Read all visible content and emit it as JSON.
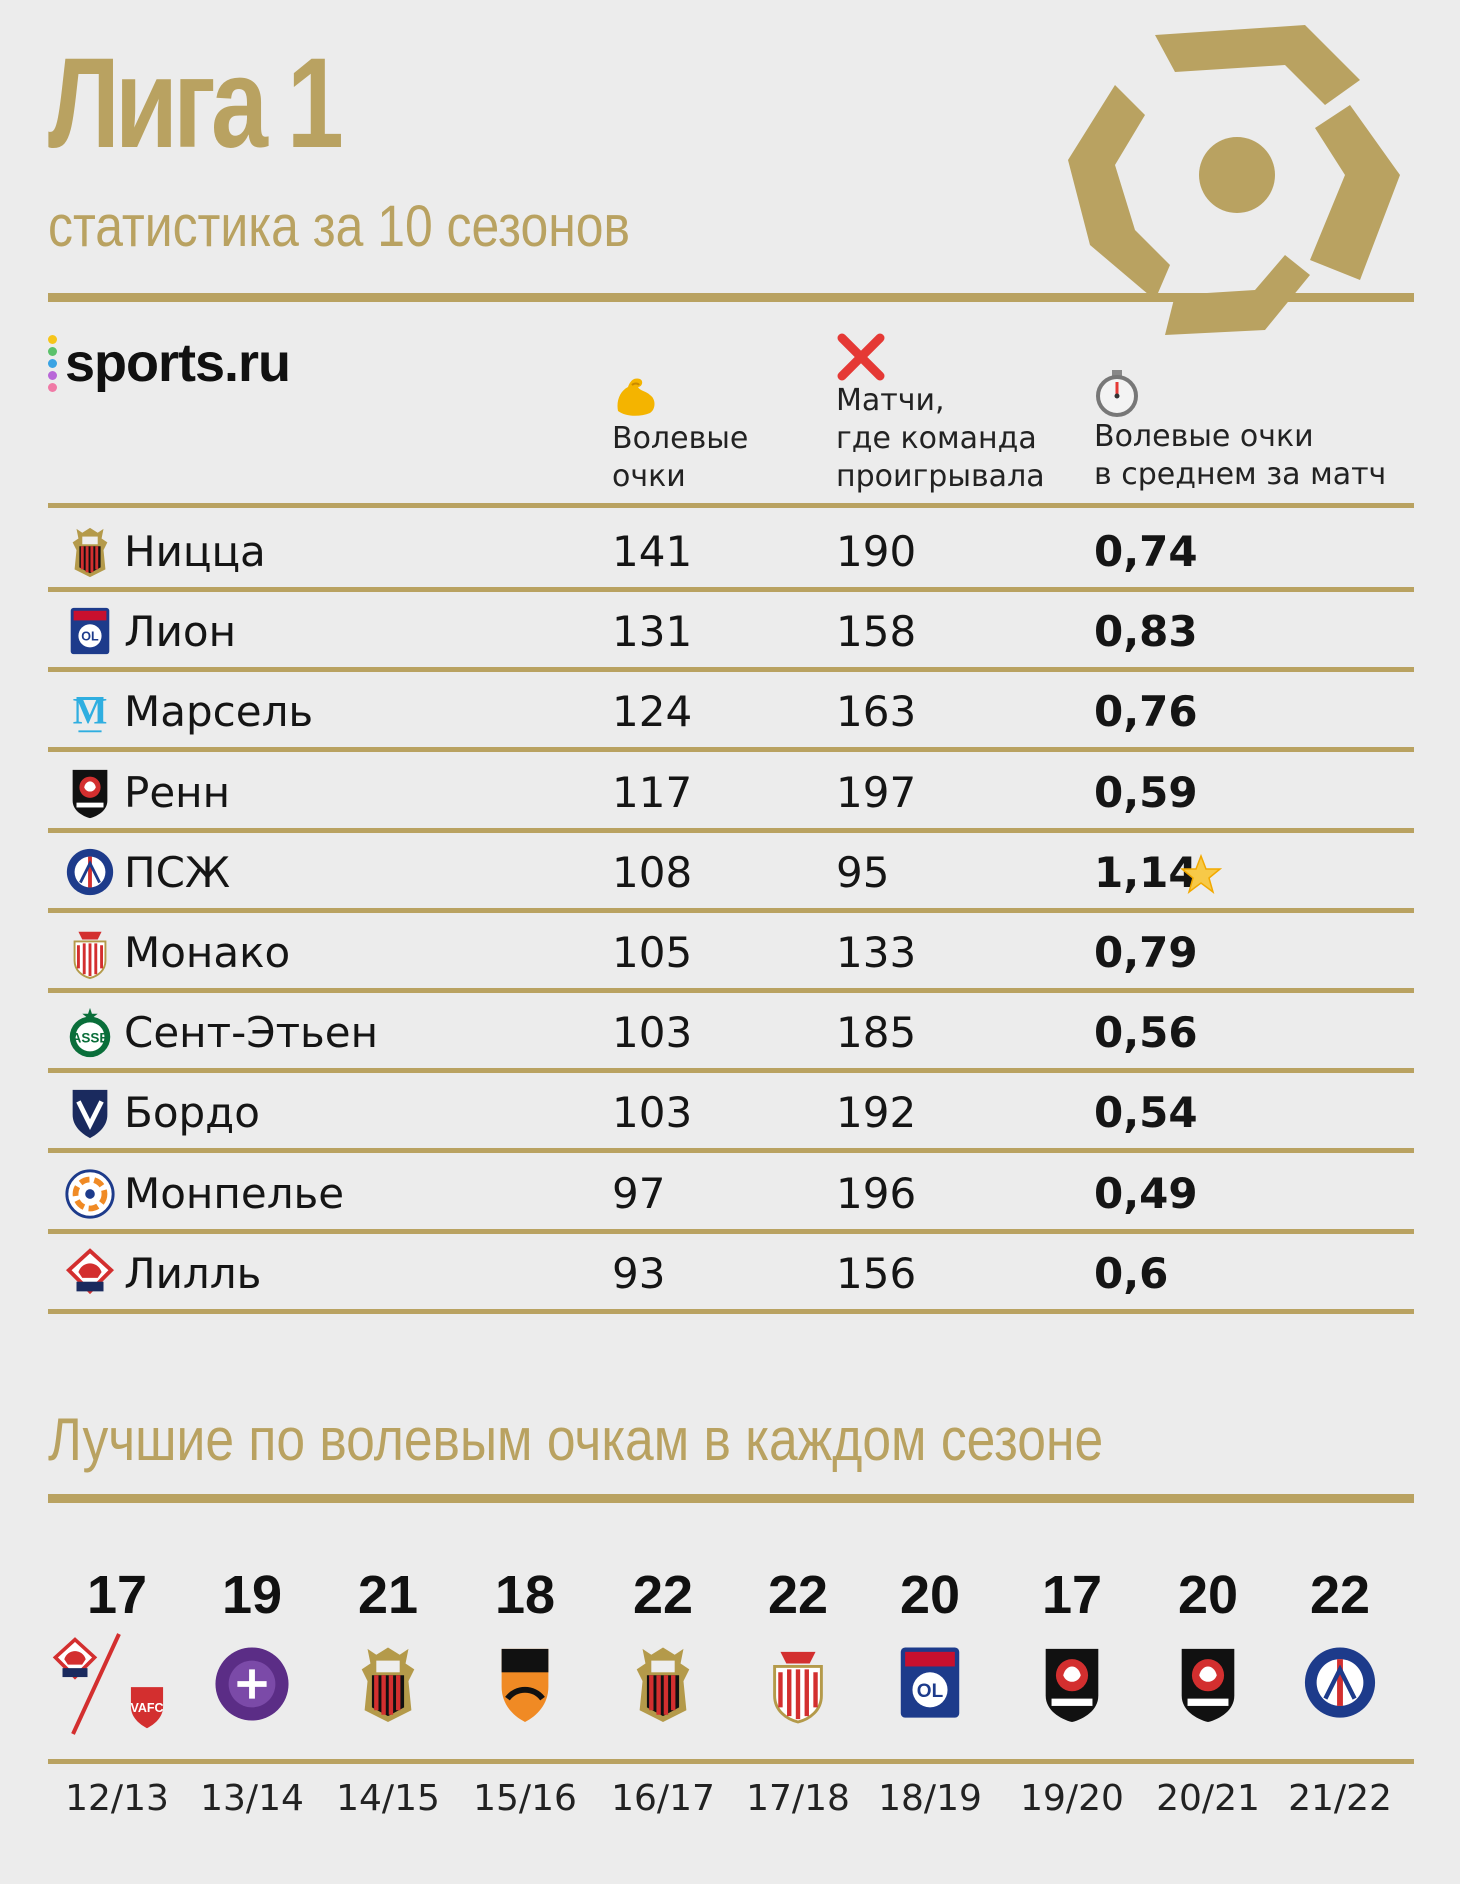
{
  "title": "Лига 1",
  "subtitle": "статистика за 10 сезонов",
  "brand": "sports.ru",
  "columns": {
    "comeback_points": [
      "Волевые",
      "очки"
    ],
    "matches_lost": [
      "Матчи,",
      "где команда",
      "проигрывала"
    ],
    "per_match": [
      "Волевые очки",
      "в среднем за матч"
    ]
  },
  "column_icons": [
    "flexed-biceps-icon",
    "cross-mark-icon",
    "stopwatch-icon"
  ],
  "colors": {
    "gold": "#b9a261",
    "cross_red": "#e53935"
  },
  "rows": [
    {
      "team": "Ницца",
      "crest": "nice",
      "points": "141",
      "lost": "190",
      "avg": "0,74"
    },
    {
      "team": "Лион",
      "crest": "lyon",
      "points": "131",
      "lost": "158",
      "avg": "0,83"
    },
    {
      "team": "Марсель",
      "crest": "marseille",
      "points": "124",
      "lost": "163",
      "avg": "0,76"
    },
    {
      "team": "Ренн",
      "crest": "rennes",
      "points": "117",
      "lost": "197",
      "avg": "0,59"
    },
    {
      "team": "ПСЖ",
      "crest": "psg",
      "points": "108",
      "lost": "95",
      "avg": "1,14",
      "highlight": "star"
    },
    {
      "team": "Монако",
      "crest": "monaco",
      "points": "105",
      "lost": "133",
      "avg": "0,79"
    },
    {
      "team": "Сент-Этьен",
      "crest": "saint-etienne",
      "points": "103",
      "lost": "185",
      "avg": "0,56"
    },
    {
      "team": "Бордо",
      "crest": "bordeaux",
      "points": "103",
      "lost": "192",
      "avg": "0,54"
    },
    {
      "team": "Монпелье",
      "crest": "montpellier",
      "points": "97",
      "lost": "196",
      "avg": "0,49"
    },
    {
      "team": "Лилль",
      "crest": "lille",
      "points": "93",
      "lost": "156",
      "avg": "0,6"
    }
  ],
  "best_title": "Лучшие по волевым очкам в каждом сезоне",
  "seasons": [
    {
      "season": "12/13",
      "points": "17",
      "crests": [
        "lille",
        "valenciennes"
      ]
    },
    {
      "season": "13/14",
      "points": "19",
      "crests": [
        "toulouse"
      ]
    },
    {
      "season": "14/15",
      "points": "21",
      "crests": [
        "nice"
      ]
    },
    {
      "season": "15/16",
      "points": "18",
      "crests": [
        "lorient"
      ]
    },
    {
      "season": "16/17",
      "points": "22",
      "crests": [
        "nice"
      ]
    },
    {
      "season": "17/18",
      "points": "22",
      "crests": [
        "monaco"
      ]
    },
    {
      "season": "18/19",
      "points": "20",
      "crests": [
        "lyon"
      ]
    },
    {
      "season": "19/20",
      "points": "17",
      "crests": [
        "rennes"
      ]
    },
    {
      "season": "20/21",
      "points": "20",
      "crests": [
        "rennes"
      ]
    },
    {
      "season": "21/22",
      "points": "22",
      "crests": [
        "psg"
      ]
    }
  ]
}
